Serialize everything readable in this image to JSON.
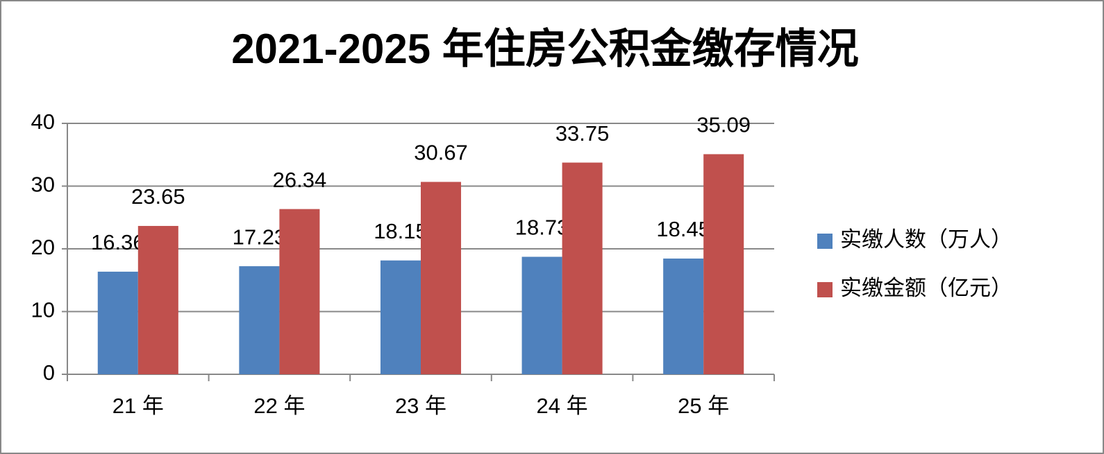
{
  "chart_data": {
    "type": "bar",
    "title": "2021-2025 年住房公积金缴存情况",
    "categories": [
      "21 年",
      "22 年",
      "23 年",
      "24 年",
      "25 年"
    ],
    "series": [
      {
        "name": "实缴人数（万人）",
        "color": "#4f81bd",
        "values": [
          16.36,
          17.23,
          18.15,
          18.73,
          18.45
        ]
      },
      {
        "name": "实缴金额（亿元）",
        "color": "#c0504d",
        "values": [
          23.65,
          26.34,
          30.67,
          33.75,
          35.09
        ]
      }
    ],
    "ylim": [
      0,
      40
    ],
    "yticks": [
      0,
      10,
      20,
      30,
      40
    ],
    "grid": true,
    "legend": "right"
  }
}
